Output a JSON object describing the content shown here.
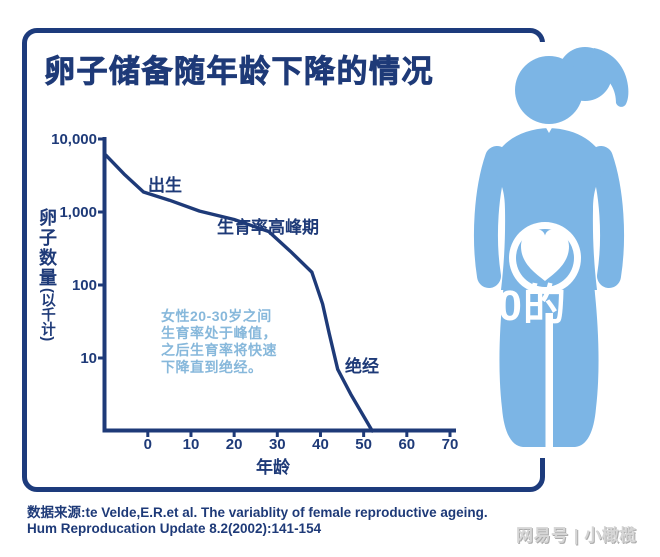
{
  "title": "卵子储备随年龄下降的情况",
  "chart_data": {
    "type": "line",
    "title": "卵子储备随年龄下降的情况",
    "xlabel": "年龄",
    "ylabel_main": "卵子数量",
    "ylabel_unit": "(以千计)",
    "x_ticks": [
      0,
      10,
      20,
      30,
      40,
      50,
      60,
      70
    ],
    "y_ticks": [
      {
        "value": 10000,
        "label": "10,000"
      },
      {
        "value": 1000,
        "label": "1,000"
      },
      {
        "value": 100,
        "label": "100"
      },
      {
        "value": 10,
        "label": "10"
      }
    ],
    "y_scale": "log",
    "grid": false,
    "series": [
      {
        "name": "卵子数量(千)",
        "points": [
          [
            -9.7,
            6000
          ],
          [
            -5.5,
            3300
          ],
          [
            -1,
            1880
          ],
          [
            5,
            1450
          ],
          [
            12,
            1030
          ],
          [
            20,
            790
          ],
          [
            28,
            540
          ],
          [
            33,
            290
          ],
          [
            38,
            150
          ],
          [
            39,
            100
          ],
          [
            40.5,
            55
          ],
          [
            42,
            22
          ],
          [
            44,
            7
          ],
          [
            47,
            3.2
          ],
          [
            52,
            1
          ]
        ]
      }
    ],
    "annotations": [
      {
        "text": "出生",
        "x": 0,
        "y": 1900
      },
      {
        "text": "生育率高峰期",
        "x": 20,
        "y": 700
      },
      {
        "text": "绝经",
        "x": 46,
        "y": 10
      }
    ]
  },
  "labels": {
    "birth": "出生",
    "peak": "生育率高峰期",
    "menopause": "绝经"
  },
  "note": {
    "line1": "女性20-30岁之间",
    "line2": "生育率处于峰值，",
    "line3": "之后生育率将快速",
    "line4": "下降直到绝经。"
  },
  "source": {
    "line1": "数据来源:te Velde,E.R.et al. The variablity of female reproductive ageing.",
    "line2": "Hum Reproducation Update 8.2(2002):141-154"
  },
  "watermarks": {
    "white_overlay": "0的",
    "platform": "网易号 | 小橄榄"
  },
  "colors": {
    "navy": "#1e3a78",
    "border": "#1d3b7c",
    "figure_blue": "#7cb5e5",
    "note_blue": "#87b8db",
    "watermark_gray": "#d6d6d6"
  }
}
